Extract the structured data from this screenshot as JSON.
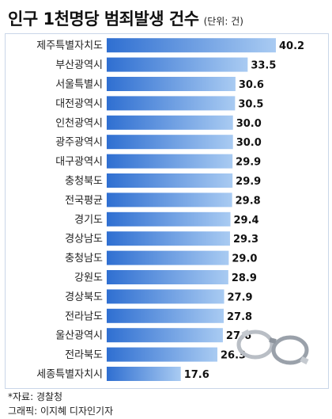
{
  "header": {
    "title": "인구 1천명당 범죄발생 건수",
    "unit": "(단위: 건)"
  },
  "footer": {
    "source": "*자료: 경찰청",
    "credit": "그래픽: 이지혜 디자인기자"
  },
  "colors": {
    "bar_start": "#2f6fd1",
    "bar_end": "#a9cbf2",
    "frame": "#c9d6e8"
  },
  "chart_data": {
    "type": "bar",
    "orientation": "horizontal",
    "title": "인구 1천명당 범죄발생 건수",
    "categories": [
      "제주특별자치도",
      "부산광역시",
      "서울특별시",
      "대전광역시",
      "인천광역시",
      "광주광역시",
      "대구광역시",
      "충청북도",
      "전국평균",
      "경기도",
      "경상남도",
      "충청남도",
      "강원도",
      "경상북도",
      "전라남도",
      "울산광역시",
      "전라북도",
      "세종특별자치시"
    ],
    "values": [
      40.2,
      33.5,
      30.6,
      30.5,
      30.0,
      30.0,
      29.9,
      29.9,
      29.8,
      29.4,
      29.3,
      29.0,
      28.9,
      27.9,
      27.8,
      27.6,
      26.3,
      17.6
    ],
    "value_labels": [
      "40.2",
      "33.5",
      "30.6",
      "30.5",
      "30.0",
      "30.0",
      "29.9",
      "29.9",
      "29.8",
      "29.4",
      "29.3",
      "29.0",
      "28.9",
      "27.9",
      "27.8",
      "27.6",
      "26.3",
      "17.6"
    ],
    "xlim": [
      0,
      40.2
    ],
    "grid": false
  },
  "decoration": {
    "illustration": "handcuffs-icon"
  }
}
